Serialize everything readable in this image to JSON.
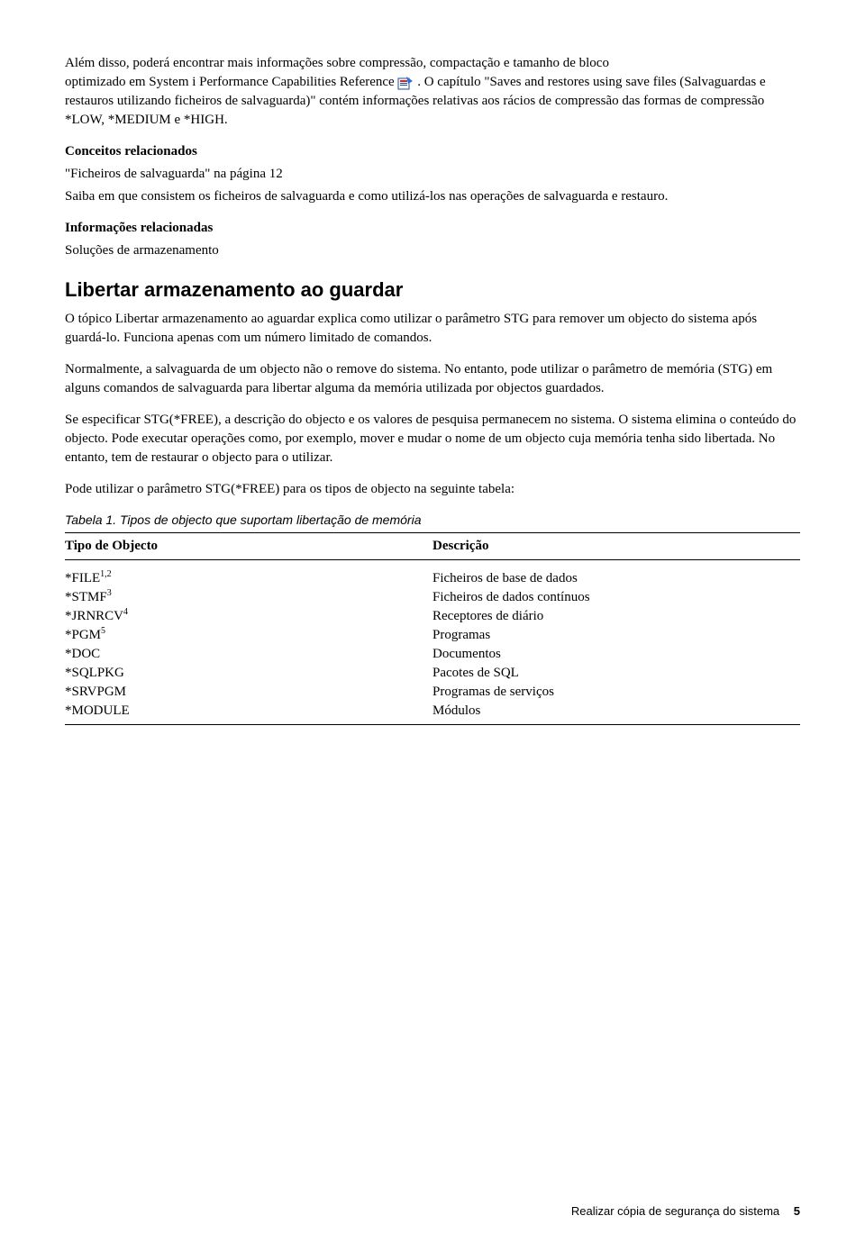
{
  "para1_a": "Além disso, poderá encontrar mais informações sobre compressão, compactação e tamanho de bloco",
  "para1_b_prefix": "optimizado em System i Performance Capabilities Reference",
  "para1_c": ". O capítulo \"Saves and restores using save files (Salvaguardas e restauros utilizando ficheiros de salvaguarda)\" contém informações relativas aos rácios de compressão das formas de compressão *LOW, *MEDIUM e *HIGH.",
  "related_concepts_heading": "Conceitos relacionados",
  "related_concepts_link": "\"Ficheiros de salvaguarda\" na página 12",
  "related_concepts_body": "Saiba em que consistem os ficheiros de salvaguarda e como utilizá-los nas operações de salvaguarda e restauro.",
  "related_info_heading": "Informações relacionadas",
  "related_info_link": "Soluções de armazenamento",
  "section_heading": "Libertar armazenamento ao guardar",
  "section_intro": "O tópico Libertar armazenamento ao aguardar explica como utilizar o parâmetro STG para remover um objecto do sistema após guardá-lo. Funciona apenas com um número limitado de comandos.",
  "section_p2": "Normalmente, a salvaguarda de um objecto não o remove do sistema. No entanto, pode utilizar o parâmetro de memória (STG) em alguns comandos de salvaguarda para libertar alguma da memória utilizada por objectos guardados.",
  "section_p3": "Se especificar STG(*FREE), a descrição do objecto e os valores de pesquisa permanecem no sistema. O sistema elimina o conteúdo do objecto. Pode executar operações como, por exemplo, mover e mudar o nome de um objecto cuja memória tenha sido libertada. No entanto, tem de restaurar o objecto para o utilizar.",
  "section_p4": "Pode utilizar o parâmetro STG(*FREE) para os tipos de objecto na seguinte tabela:",
  "table_caption": "Tabela 1. Tipos de objecto que suportam libertação de memória",
  "table_headers": {
    "c1": "Tipo de Objecto",
    "c2": "Descrição"
  },
  "table_rows": [
    {
      "t": "*FILE",
      "sup": "1,2",
      "d": "Ficheiros de base de dados"
    },
    {
      "t": "*STMF",
      "sup": "3",
      "d": "Ficheiros de dados contínuos"
    },
    {
      "t": "*JRNRCV",
      "sup": "4",
      "d": "Receptores de diário"
    },
    {
      "t": "*PGM",
      "sup": "5",
      "d": "Programas"
    },
    {
      "t": "*DOC",
      "sup": "",
      "d": "Documentos"
    },
    {
      "t": "*SQLPKG",
      "sup": "",
      "d": "Pacotes de SQL"
    },
    {
      "t": "*SRVPGM",
      "sup": "",
      "d": "Programas de serviços"
    },
    {
      "t": "*MODULE",
      "sup": "",
      "d": "Módulos"
    }
  ],
  "footer_text": "Realizar cópia de segurança do sistema",
  "footer_page": "5"
}
